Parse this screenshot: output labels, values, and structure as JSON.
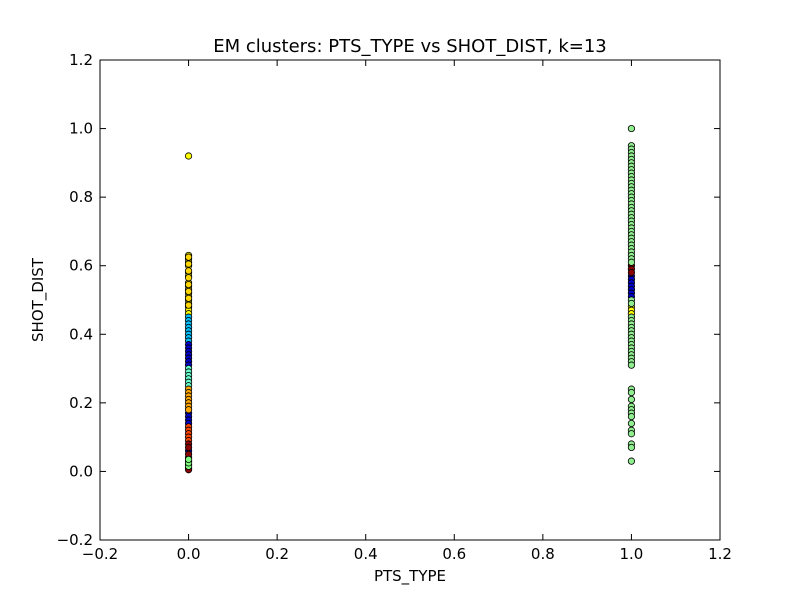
{
  "chart_data": {
    "type": "scatter",
    "title": "EM clusters: PTS_TYPE vs SHOT_DIST, k=13",
    "xlabel": "PTS_TYPE",
    "ylabel": "SHOT_DIST",
    "xlim": [
      -0.2,
      1.2
    ],
    "ylim": [
      -0.2,
      1.2
    ],
    "xticks": [
      -0.2,
      0.0,
      0.2,
      0.4,
      0.6,
      0.8,
      1.0,
      1.2
    ],
    "yticks": [
      -0.2,
      0.0,
      0.2,
      0.4,
      0.6,
      0.8,
      1.0,
      1.2
    ],
    "xtick_labels": [
      "−0.2",
      "0.0",
      "0.2",
      "0.4",
      "0.6",
      "0.8",
      "1.0",
      "1.2"
    ],
    "ytick_labels": [
      "−0.2",
      "0.0",
      "0.2",
      "0.4",
      "0.6",
      "0.8",
      "1.0",
      "1.2"
    ],
    "grid": false,
    "legend": "none",
    "marker_edge_color": "#000000",
    "series": [
      {
        "color": "#ffff00",
        "points": [
          [
            0,
            0.92
          ],
          [
            0,
            0.63
          ],
          [
            0,
            0.62
          ],
          [
            0,
            0.61
          ],
          [
            0,
            0.6
          ],
          [
            0,
            0.58
          ],
          [
            0,
            0.57
          ],
          [
            0,
            0.55
          ],
          [
            0,
            0.54
          ],
          [
            0,
            0.53
          ],
          [
            0,
            0.52
          ],
          [
            0,
            0.51
          ],
          [
            0,
            0.5
          ],
          [
            0,
            0.49
          ],
          [
            0,
            0.48
          ],
          [
            0,
            0.47
          ],
          [
            0,
            0.46
          ],
          [
            1,
            0.48
          ],
          [
            1,
            0.47
          ],
          [
            1,
            0.46
          ]
        ]
      },
      {
        "color": "#ffd700",
        "points": [
          [
            0,
            0.625
          ],
          [
            0,
            0.605
          ],
          [
            0,
            0.585
          ],
          [
            0,
            0.565
          ],
          [
            0,
            0.545
          ],
          [
            0,
            0.525
          ],
          [
            0,
            0.505
          ],
          [
            0,
            0.485
          ]
        ]
      },
      {
        "color": "#00bfff",
        "points": [
          [
            0,
            0.45
          ],
          [
            0,
            0.44
          ],
          [
            0,
            0.43
          ],
          [
            0,
            0.42
          ],
          [
            0,
            0.41
          ],
          [
            0,
            0.4
          ],
          [
            0,
            0.39
          ],
          [
            0,
            0.38
          ]
        ]
      },
      {
        "color": "#0000cd",
        "points": [
          [
            0,
            0.37
          ],
          [
            0,
            0.36
          ],
          [
            0,
            0.35
          ],
          [
            0,
            0.34
          ],
          [
            0,
            0.33
          ],
          [
            0,
            0.32
          ],
          [
            0,
            0.31
          ],
          [
            0,
            0.17
          ],
          [
            0,
            0.16
          ],
          [
            0,
            0.15
          ],
          [
            0,
            0.14
          ],
          [
            0,
            0.06
          ],
          [
            1,
            0.57
          ],
          [
            1,
            0.56
          ],
          [
            1,
            0.55
          ],
          [
            1,
            0.54
          ],
          [
            1,
            0.53
          ],
          [
            1,
            0.52
          ],
          [
            1,
            0.51
          ]
        ]
      },
      {
        "color": "#66ffcc",
        "points": [
          [
            0,
            0.3
          ],
          [
            0,
            0.29
          ],
          [
            0,
            0.28
          ],
          [
            0,
            0.27
          ],
          [
            0,
            0.26
          ],
          [
            0,
            0.25
          ]
        ]
      },
      {
        "color": "#ffa500",
        "points": [
          [
            0,
            0.24
          ],
          [
            0,
            0.23
          ],
          [
            0,
            0.22
          ],
          [
            0,
            0.21
          ],
          [
            0,
            0.2
          ],
          [
            0,
            0.19
          ],
          [
            0,
            0.18
          ],
          [
            0,
            0.04
          ]
        ]
      },
      {
        "color": "#ff4500",
        "points": [
          [
            0,
            0.13
          ],
          [
            0,
            0.12
          ],
          [
            0,
            0.11
          ],
          [
            0,
            0.1
          ],
          [
            0,
            0.09
          ],
          [
            0,
            0.03
          ]
        ]
      },
      {
        "color": "#8b0000",
        "points": [
          [
            0,
            0.08
          ],
          [
            0,
            0.07
          ],
          [
            0,
            0.05
          ],
          [
            0,
            0.02
          ],
          [
            0,
            0.01
          ],
          [
            0,
            0.005
          ],
          [
            1,
            0.6
          ],
          [
            1,
            0.59
          ],
          [
            1,
            0.58
          ]
        ]
      },
      {
        "color": "#90ee90",
        "points": [
          [
            1,
            1.0
          ],
          [
            1,
            0.95
          ],
          [
            1,
            0.94
          ],
          [
            1,
            0.93
          ],
          [
            1,
            0.92
          ],
          [
            1,
            0.91
          ],
          [
            1,
            0.9
          ],
          [
            1,
            0.89
          ],
          [
            1,
            0.88
          ],
          [
            1,
            0.87
          ],
          [
            1,
            0.86
          ],
          [
            1,
            0.85
          ],
          [
            1,
            0.84
          ],
          [
            1,
            0.83
          ],
          [
            1,
            0.82
          ],
          [
            1,
            0.81
          ],
          [
            1,
            0.8
          ],
          [
            1,
            0.79
          ],
          [
            1,
            0.78
          ],
          [
            1,
            0.77
          ],
          [
            1,
            0.76
          ],
          [
            1,
            0.75
          ],
          [
            1,
            0.74
          ],
          [
            1,
            0.73
          ],
          [
            1,
            0.72
          ],
          [
            1,
            0.71
          ],
          [
            1,
            0.7
          ],
          [
            1,
            0.69
          ],
          [
            1,
            0.68
          ],
          [
            1,
            0.67
          ],
          [
            1,
            0.66
          ],
          [
            1,
            0.65
          ],
          [
            1,
            0.64
          ],
          [
            1,
            0.63
          ],
          [
            1,
            0.62
          ],
          [
            1,
            0.61
          ],
          [
            1,
            0.5
          ],
          [
            1,
            0.49
          ],
          [
            1,
            0.45
          ],
          [
            1,
            0.44
          ],
          [
            1,
            0.43
          ],
          [
            1,
            0.42
          ],
          [
            1,
            0.41
          ],
          [
            1,
            0.4
          ],
          [
            1,
            0.39
          ],
          [
            1,
            0.38
          ],
          [
            1,
            0.37
          ],
          [
            1,
            0.36
          ],
          [
            1,
            0.35
          ],
          [
            1,
            0.34
          ],
          [
            1,
            0.33
          ],
          [
            1,
            0.32
          ],
          [
            1,
            0.31
          ],
          [
            1,
            0.24
          ],
          [
            1,
            0.23
          ],
          [
            1,
            0.21
          ],
          [
            1,
            0.19
          ],
          [
            1,
            0.18
          ],
          [
            1,
            0.17
          ],
          [
            1,
            0.16
          ],
          [
            1,
            0.14
          ],
          [
            1,
            0.12
          ],
          [
            1,
            0.11
          ],
          [
            1,
            0.08
          ],
          [
            1,
            0.07
          ],
          [
            1,
            0.03
          ]
        ]
      },
      {
        "color": "#7fff7f",
        "points": [
          [
            0,
            0.015
          ],
          [
            0,
            0.025
          ],
          [
            0,
            0.035
          ]
        ]
      }
    ]
  }
}
